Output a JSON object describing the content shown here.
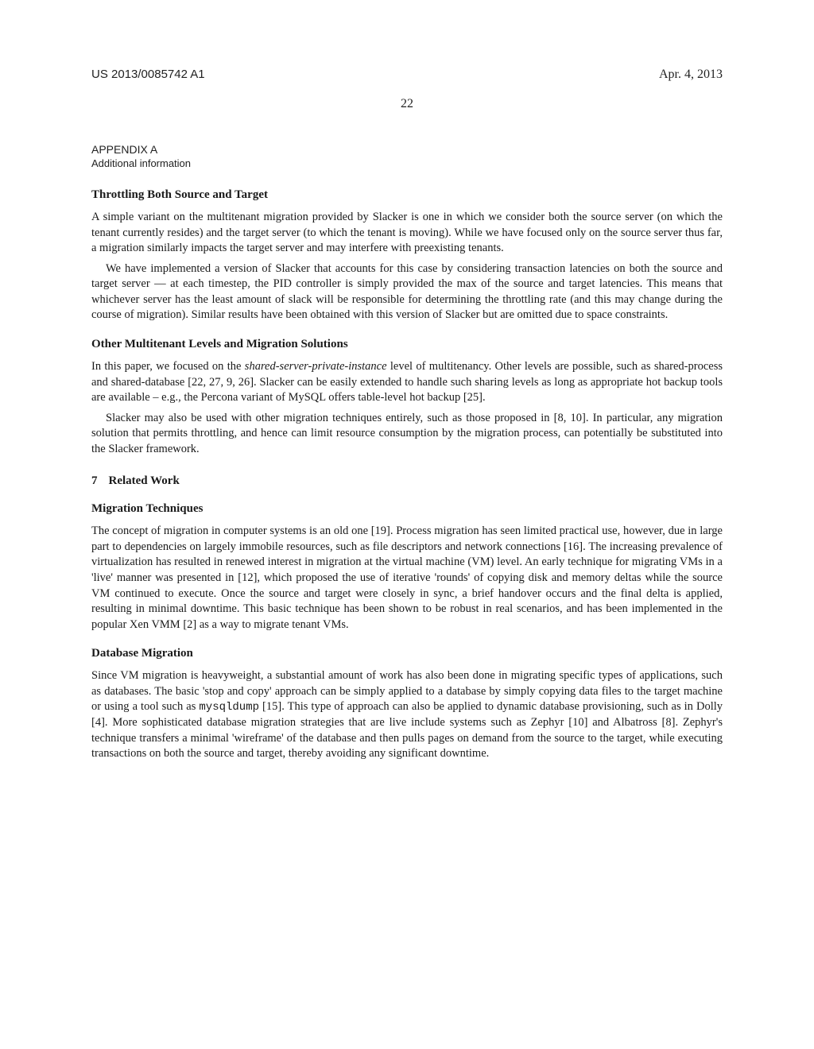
{
  "header": {
    "patent_id": "US 2013/0085742 A1",
    "date": "Apr. 4, 2013",
    "page_number": "22"
  },
  "appendix": {
    "label": "APPENDIX A",
    "subtitle": "Additional information"
  },
  "sections": {
    "throttling": {
      "title": "Throttling Both Source and Target",
      "p1": "A simple variant on the multitenant migration provided by Slacker is one in which we consider both the source server (on which the tenant currently resides) and the target server (to which the tenant is moving). While we have focused only on the source server thus far, a migration similarly impacts the target server and may interfere with preexisting tenants.",
      "p2": "We have implemented a version of Slacker that accounts for this case by considering transaction latencies on both the source and target server — at each timestep, the PID controller is simply provided the max of the source and target latencies. This means that whichever server has the least amount of slack will be responsible for determining the throttling rate (and this may change during the course of migration). Similar results have been obtained with this version of Slacker but are omitted due to space constraints."
    },
    "other": {
      "title": "Other Multitenant Levels and Migration Solutions",
      "p1a": "In this paper, we focused on the ",
      "p1_em": "shared-server-private-instance",
      "p1b": " level of multitenancy. Other levels are possible, such as shared-process and shared-database [22, 27, 9, 26]. Slacker can be easily extended to handle such sharing levels as long as appropriate hot backup tools are available – e.g., the Percona variant of MySQL offers table-level hot backup [25].",
      "p2": "Slacker may also be used with other migration techniques entirely, such as those proposed in [8, 10]. In particular, any migration solution that permits throttling, and hence can limit resource consumption by the migration process, can potentially be substituted into the Slacker framework."
    },
    "related": {
      "num": "7",
      "title": "Related Work"
    },
    "migtech": {
      "title": "Migration Techniques",
      "p1": "The concept of migration in computer systems is an old one [19]. Process migration has seen limited practical use, however, due in large part to dependencies on largely immobile resources, such as file descriptors and network connections [16]. The increasing prevalence of virtualization has resulted in renewed interest in migration at the virtual machine (VM) level. An early technique for migrating VMs in a 'live' manner was presented in [12], which proposed the use of iterative 'rounds' of copying disk and memory deltas while the source VM continued to execute. Once the source and target were closely in sync, a brief handover occurs and the final delta is applied, resulting in minimal downtime. This basic technique has been shown to be robust in real scenarios, and has been implemented in the popular Xen VMM [2] as a way to migrate tenant VMs."
    },
    "dbm": {
      "title": "Database Migration",
      "p1a": "Since VM migration is heavyweight, a substantial amount of work has also been done in migrating specific types of applications, such as databases. The basic 'stop and copy' approach can be simply applied to a database by simply copying data files to the target machine or using a tool such as ",
      "p1_code": "mysqldump",
      "p1b": " [15]. This type of approach can also be applied to dynamic database provisioning, such as in Dolly [4]. More sophisticated database migration strategies that are live include systems such as Zephyr [10] and Albatross [8]. Zephyr's technique transfers a minimal 'wireframe' of the database and then pulls pages on demand from the source to the target, while executing transactions on both the source and target, thereby avoiding any significant downtime."
    }
  }
}
